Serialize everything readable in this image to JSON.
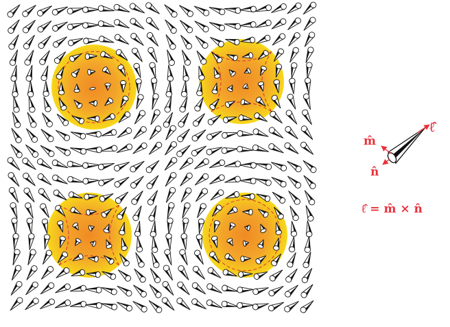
{
  "figure": {
    "colors": {
      "cone_stroke": "#111111",
      "cone_fill": "#ffffff",
      "blob_center": "#f08a24",
      "blob_edge": "#f7d81a",
      "dashed_line": "#d8322a",
      "label_color": "#e8323c"
    },
    "grid": {
      "columns": 20,
      "rows": 20
    },
    "skyrmions": [
      {
        "id": "top-left",
        "type": "vortex",
        "chirality": 1
      },
      {
        "id": "top-right",
        "type": "antivortex",
        "chirality": 1
      },
      {
        "id": "bottom-left",
        "type": "antivortex",
        "chirality": -1
      },
      {
        "id": "bottom-right",
        "type": "vortex",
        "chirality": -1
      }
    ]
  },
  "legend": {
    "vectors": [
      {
        "id": "m",
        "label": "m̂"
      },
      {
        "id": "ell",
        "label": "ℓ̂"
      },
      {
        "id": "n",
        "label": "n̂"
      }
    ],
    "equation": "ℓ̂ = m̂ × n̂"
  }
}
